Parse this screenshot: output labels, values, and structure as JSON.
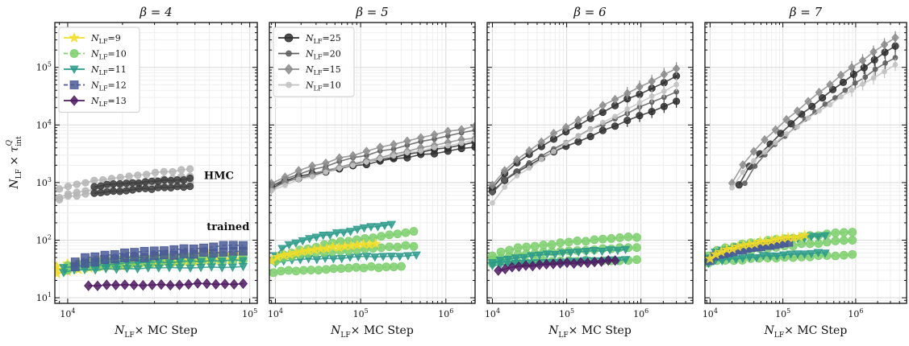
{
  "figure": {
    "ylabel": "N_LF × τ_int^Q",
    "xlabel": "N_LF× MC Step"
  },
  "chart_data": [
    {
      "type": "line",
      "title": "β = 4",
      "xscale": "log",
      "yscale": "log",
      "xlim": [
        8500,
        110000
      ],
      "ylim": [
        8,
        600000
      ],
      "xticks": [
        "10^4",
        "10^5"
      ],
      "yticks": [
        "10^1",
        "10^2",
        "10^3",
        "10^4",
        "10^5"
      ],
      "grid": true,
      "legend_position": "top-left",
      "annotations": [
        {
          "text": "HMC",
          "x": 56000,
          "y": 1150,
          "color": "#666666"
        },
        {
          "text": "trained",
          "x": 58000,
          "y": 150,
          "color": "#2a9a8a"
        }
      ],
      "series": [
        {
          "name": "N_LF=9",
          "group": "trained",
          "color": "#f2dd28",
          "marker": "star",
          "dash": "solid",
          "x0": 8700,
          "x1": 90000,
          "y0": [
            26,
            30,
            35
          ],
          "y1": [
            46,
            55,
            60
          ]
        },
        {
          "name": "N_LF=10",
          "group": "trained",
          "color": "#7ccf6c",
          "marker": "circle",
          "dash": "dashed",
          "x0": 10000,
          "x1": 92000,
          "y0": [
            30,
            36
          ],
          "y1": [
            45,
            55
          ]
        },
        {
          "name": "N_LF=11",
          "group": "trained",
          "color": "#2a9a8a",
          "marker": "tri",
          "dash": "solid",
          "x0": 9500,
          "x1": 92000,
          "y0": [
            28,
            33
          ],
          "y1": [
            35,
            45
          ]
        },
        {
          "name": "N_LF=12",
          "group": "trained",
          "color": "#4a5a96",
          "marker": "square",
          "dash": "dashed",
          "x0": 11000,
          "x1": 92000,
          "y0": [
            42,
            35
          ],
          "y1": [
            82,
            65
          ]
        },
        {
          "name": "N_LF=13",
          "group": "trained",
          "color": "#4f1a62",
          "marker": "diamond",
          "dash": "solid",
          "x0": 13000,
          "x1": 92000,
          "y0": [
            16
          ],
          "y1": [
            17.5
          ]
        },
        {
          "name": "",
          "group": "hmc",
          "color": "#b5b5b5",
          "marker": "circle",
          "dash": "solid",
          "x0": 9000,
          "x1": 47000,
          "y0": [
            520,
            560,
            800
          ],
          "y1": [
            1000,
            1300,
            1700
          ]
        },
        {
          "name": "",
          "group": "hmc",
          "color": "#3c3c3c",
          "marker": "circle",
          "dash": "solid",
          "x0": 14000,
          "x1": 47000,
          "y0": [
            650,
            850
          ],
          "y1": [
            850,
            1150
          ]
        }
      ]
    },
    {
      "type": "line",
      "title": "β = 5",
      "xscale": "log",
      "yscale": "log",
      "xlim": [
        8500,
        2200000
      ],
      "ylim": [
        8,
        600000
      ],
      "xticks": [
        "10^4",
        "10^5",
        "10^6"
      ],
      "grid": true,
      "legend_position": "top-left",
      "series": [
        {
          "name": "N_LF=25",
          "group": "hmc",
          "color": "#2e2e2e",
          "marker": "circle",
          "dash": "solid",
          "x0": 9000,
          "x1": 2200000,
          "y0": [
            900,
            800
          ],
          "y1": [
            4100,
            5000
          ]
        },
        {
          "name": "N_LF=20",
          "group": "hmc",
          "color": "#5e5e5e",
          "marker": "plus",
          "dash": "solid",
          "x0": 9000,
          "x1": 2200000,
          "y0": [
            850
          ],
          "y1": [
            8000
          ]
        },
        {
          "name": "N_LF=15",
          "group": "hmc",
          "color": "#8c8c8c",
          "marker": "diamond",
          "dash": "solid",
          "x0": 9000,
          "x1": 2200000,
          "y0": [
            950,
            750
          ],
          "y1": [
            9500,
            6000
          ]
        },
        {
          "name": "N_LF=10",
          "group": "hmc",
          "color": "#c2c2c2",
          "marker": "plus",
          "dash": "solid",
          "x0": 9000,
          "x1": 2200000,
          "y0": [
            700
          ],
          "y1": [
            5500
          ]
        },
        {
          "name": "",
          "group": "trained",
          "color": "#2a9a8a",
          "marker": "tri",
          "dash": "solid",
          "x0": 10000,
          "x1": 230000,
          "y0": [
            55
          ],
          "y1": [
            190
          ]
        },
        {
          "name": "",
          "group": "trained",
          "color": "#2a9a8a",
          "marker": "tri",
          "dash": "solid",
          "x0": 10000,
          "x1": 450000,
          "y0": [
            40
          ],
          "y1": [
            55
          ]
        },
        {
          "name": "",
          "group": "trained",
          "color": "#7ccf6c",
          "marker": "circle",
          "dash": "dashed",
          "x0": 10000,
          "x1": 420000,
          "y0": [
            42
          ],
          "y1": [
            140
          ]
        },
        {
          "name": "",
          "group": "trained",
          "color": "#7ccf6c",
          "marker": "circle",
          "dash": "dashed",
          "x0": 10000,
          "x1": 420000,
          "y0": [
            45
          ],
          "y1": [
            80
          ]
        },
        {
          "name": "",
          "group": "trained",
          "color": "#7ccf6c",
          "marker": "circle",
          "dash": "dashed",
          "x0": 9500,
          "x1": 300000,
          "y0": [
            27
          ],
          "y1": [
            35
          ]
        },
        {
          "name": "",
          "group": "trained",
          "color": "#f2dd28",
          "marker": "star",
          "dash": "solid",
          "x0": 9000,
          "x1": 150000,
          "y0": [
            45
          ],
          "y1": [
            88
          ]
        }
      ]
    },
    {
      "type": "line",
      "title": "β = 6",
      "xscale": "log",
      "yscale": "log",
      "xlim": [
        8500,
        5000000
      ],
      "ylim": [
        8,
        600000
      ],
      "xticks": [
        "10^4",
        "10^5",
        "10^6"
      ],
      "grid": true,
      "series": [
        {
          "name": "",
          "group": "hmc",
          "color": "#2e2e2e",
          "marker": "circle",
          "dash": "solid",
          "x0": 10000,
          "x1": 3000000,
          "y0": [
            800,
            700
          ],
          "y1": [
            70000,
            25000
          ]
        },
        {
          "name": "",
          "group": "hmc",
          "color": "#5e5e5e",
          "marker": "plus",
          "dash": "solid",
          "x0": 10000,
          "x1": 3000000,
          "y0": [
            650
          ],
          "y1": [
            38000
          ]
        },
        {
          "name": "",
          "group": "hmc",
          "color": "#8c8c8c",
          "marker": "diamond",
          "dash": "solid",
          "x0": 10000,
          "x1": 3000000,
          "y0": [
            900
          ],
          "y1": [
            95000
          ]
        },
        {
          "name": "",
          "group": "hmc",
          "color": "#c2c2c2",
          "marker": "plus",
          "dash": "solid",
          "x0": 10000,
          "x1": 3000000,
          "y0": [
            450
          ],
          "y1": [
            50000
          ]
        },
        {
          "name": "",
          "group": "trained",
          "color": "#7ccf6c",
          "marker": "circle",
          "dash": "dashed",
          "x0": 10000,
          "x1": 880000,
          "y0": [
            55,
            45,
            40
          ],
          "y1": [
            115,
            75,
            45
          ]
        },
        {
          "name": "",
          "group": "trained",
          "color": "#2a9a8a",
          "marker": "tri",
          "dash": "solid",
          "x0": 10000,
          "x1": 620000,
          "y0": [
            40,
            35
          ],
          "y1": [
            70,
            45
          ]
        },
        {
          "name": "",
          "group": "trained",
          "color": "#4f1a62",
          "marker": "diamond",
          "dash": "solid",
          "x0": 12000,
          "x1": 450000,
          "y0": [
            30
          ],
          "y1": [
            44
          ]
        }
      ]
    },
    {
      "type": "line",
      "title": "β = 7",
      "xscale": "log",
      "yscale": "log",
      "xlim": [
        8500,
        5000000
      ],
      "ylim": [
        8,
        600000
      ],
      "xticks": [
        "10^4",
        "10^5",
        "10^6"
      ],
      "grid": true,
      "series": [
        {
          "name": "",
          "group": "hmc",
          "color": "#2e2e2e",
          "marker": "circle",
          "dash": "solid",
          "x0": 25000,
          "x1": 3500000,
          "y0": [
            900
          ],
          "y1": [
            240000
          ]
        },
        {
          "name": "",
          "group": "hmc",
          "color": "#5e5e5e",
          "marker": "plus",
          "dash": "solid",
          "x0": 30000,
          "x1": 3500000,
          "y0": [
            1000
          ],
          "y1": [
            150000
          ]
        },
        {
          "name": "",
          "group": "hmc",
          "color": "#8c8c8c",
          "marker": "diamond",
          "dash": "solid",
          "x0": 20000,
          "x1": 3500000,
          "y0": [
            950
          ],
          "y1": [
            330000
          ]
        },
        {
          "name": "",
          "group": "hmc",
          "color": "#c2c2c2",
          "marker": "plus",
          "dash": "solid",
          "x0": 20000,
          "x1": 3500000,
          "y0": [
            800
          ],
          "y1": [
            110000
          ]
        },
        {
          "name": "",
          "group": "trained",
          "color": "#7ccf6c",
          "marker": "circle",
          "dash": "dashed",
          "x0": 9500,
          "x1": 900000,
          "y0": [
            55,
            45,
            40
          ],
          "y1": [
            140,
            100,
            55
          ]
        },
        {
          "name": "",
          "group": "trained",
          "color": "#2a9a8a",
          "marker": "tri",
          "dash": "solid",
          "x0": 9500,
          "x1": 380000,
          "y0": [
            50,
            40
          ],
          "y1": [
            120,
            60
          ]
        },
        {
          "name": "",
          "group": "trained",
          "color": "#4a5a96",
          "marker": "square",
          "dash": "dashed",
          "x0": 10000,
          "x1": 120000,
          "y0": [
            45
          ],
          "y1": [
            90
          ]
        },
        {
          "name": "",
          "group": "trained",
          "color": "#f2dd28",
          "marker": "star",
          "dash": "solid",
          "x0": 10000,
          "x1": 200000,
          "y0": [
            48
          ],
          "y1": [
            120
          ]
        }
      ]
    }
  ]
}
